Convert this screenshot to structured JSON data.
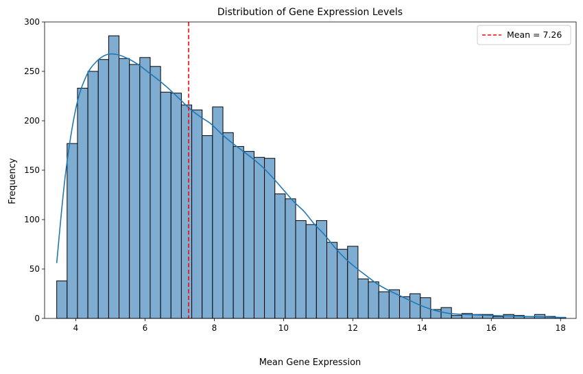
{
  "chart_data": {
    "type": "bar",
    "title": "Distribution of Gene Expression Levels",
    "xlabel": "Mean Gene Expression",
    "ylabel": "Frequency",
    "xlim": [
      3.1,
      18.45
    ],
    "ylim": [
      0,
      300
    ],
    "x_ticks": [
      4,
      6,
      8,
      10,
      12,
      14,
      16,
      18
    ],
    "y_ticks": [
      0,
      50,
      100,
      150,
      200,
      250,
      300
    ],
    "bin_start": 3.45,
    "bin_width": 0.3,
    "bar_color": "#7fadd2",
    "bar_edge_color": "#000000",
    "kde_color": "#1f77b4",
    "mean_line_color": "#ff0000",
    "grid": false,
    "legend_position": "top-right",
    "legend": [
      {
        "label": "Mean = 7.26",
        "style": "dashed",
        "color": "#ff0000"
      }
    ],
    "mean": 7.26,
    "counts": [
      38,
      177,
      233,
      250,
      262,
      286,
      263,
      257,
      264,
      255,
      229,
      228,
      216,
      211,
      185,
      214,
      188,
      174,
      169,
      163,
      162,
      126,
      121,
      99,
      95,
      99,
      77,
      70,
      73,
      40,
      37,
      27,
      29,
      22,
      25,
      21,
      9,
      11,
      3,
      5,
      4,
      4,
      2,
      4,
      3,
      2,
      4,
      2,
      1
    ],
    "kde": {
      "x": [
        3.45,
        3.7,
        4.0,
        4.3,
        4.6,
        4.9,
        5.2,
        5.5,
        5.8,
        6.1,
        6.4,
        6.7,
        7.0,
        7.3,
        7.6,
        7.9,
        8.2,
        8.5,
        8.8,
        9.1,
        9.4,
        9.7,
        10.0,
        10.3,
        10.6,
        10.9,
        11.2,
        11.5,
        11.8,
        12.1,
        12.4,
        12.7,
        13.0,
        13.3,
        13.6,
        13.9,
        14.2,
        14.5,
        14.8,
        15.2,
        15.6,
        16.0,
        16.5,
        17.0,
        17.5,
        18.0,
        18.15
      ],
      "y": [
        56,
        145,
        212,
        245,
        260,
        267,
        267,
        263,
        257,
        249,
        241,
        232,
        222,
        212,
        204,
        197,
        187,
        178,
        170,
        162,
        153,
        142,
        130,
        118,
        108,
        95,
        84,
        71,
        60,
        51,
        43,
        35,
        29,
        24,
        19,
        14,
        10,
        7,
        5,
        4,
        3.5,
        3,
        2.5,
        2,
        1.5,
        1,
        1
      ]
    }
  }
}
